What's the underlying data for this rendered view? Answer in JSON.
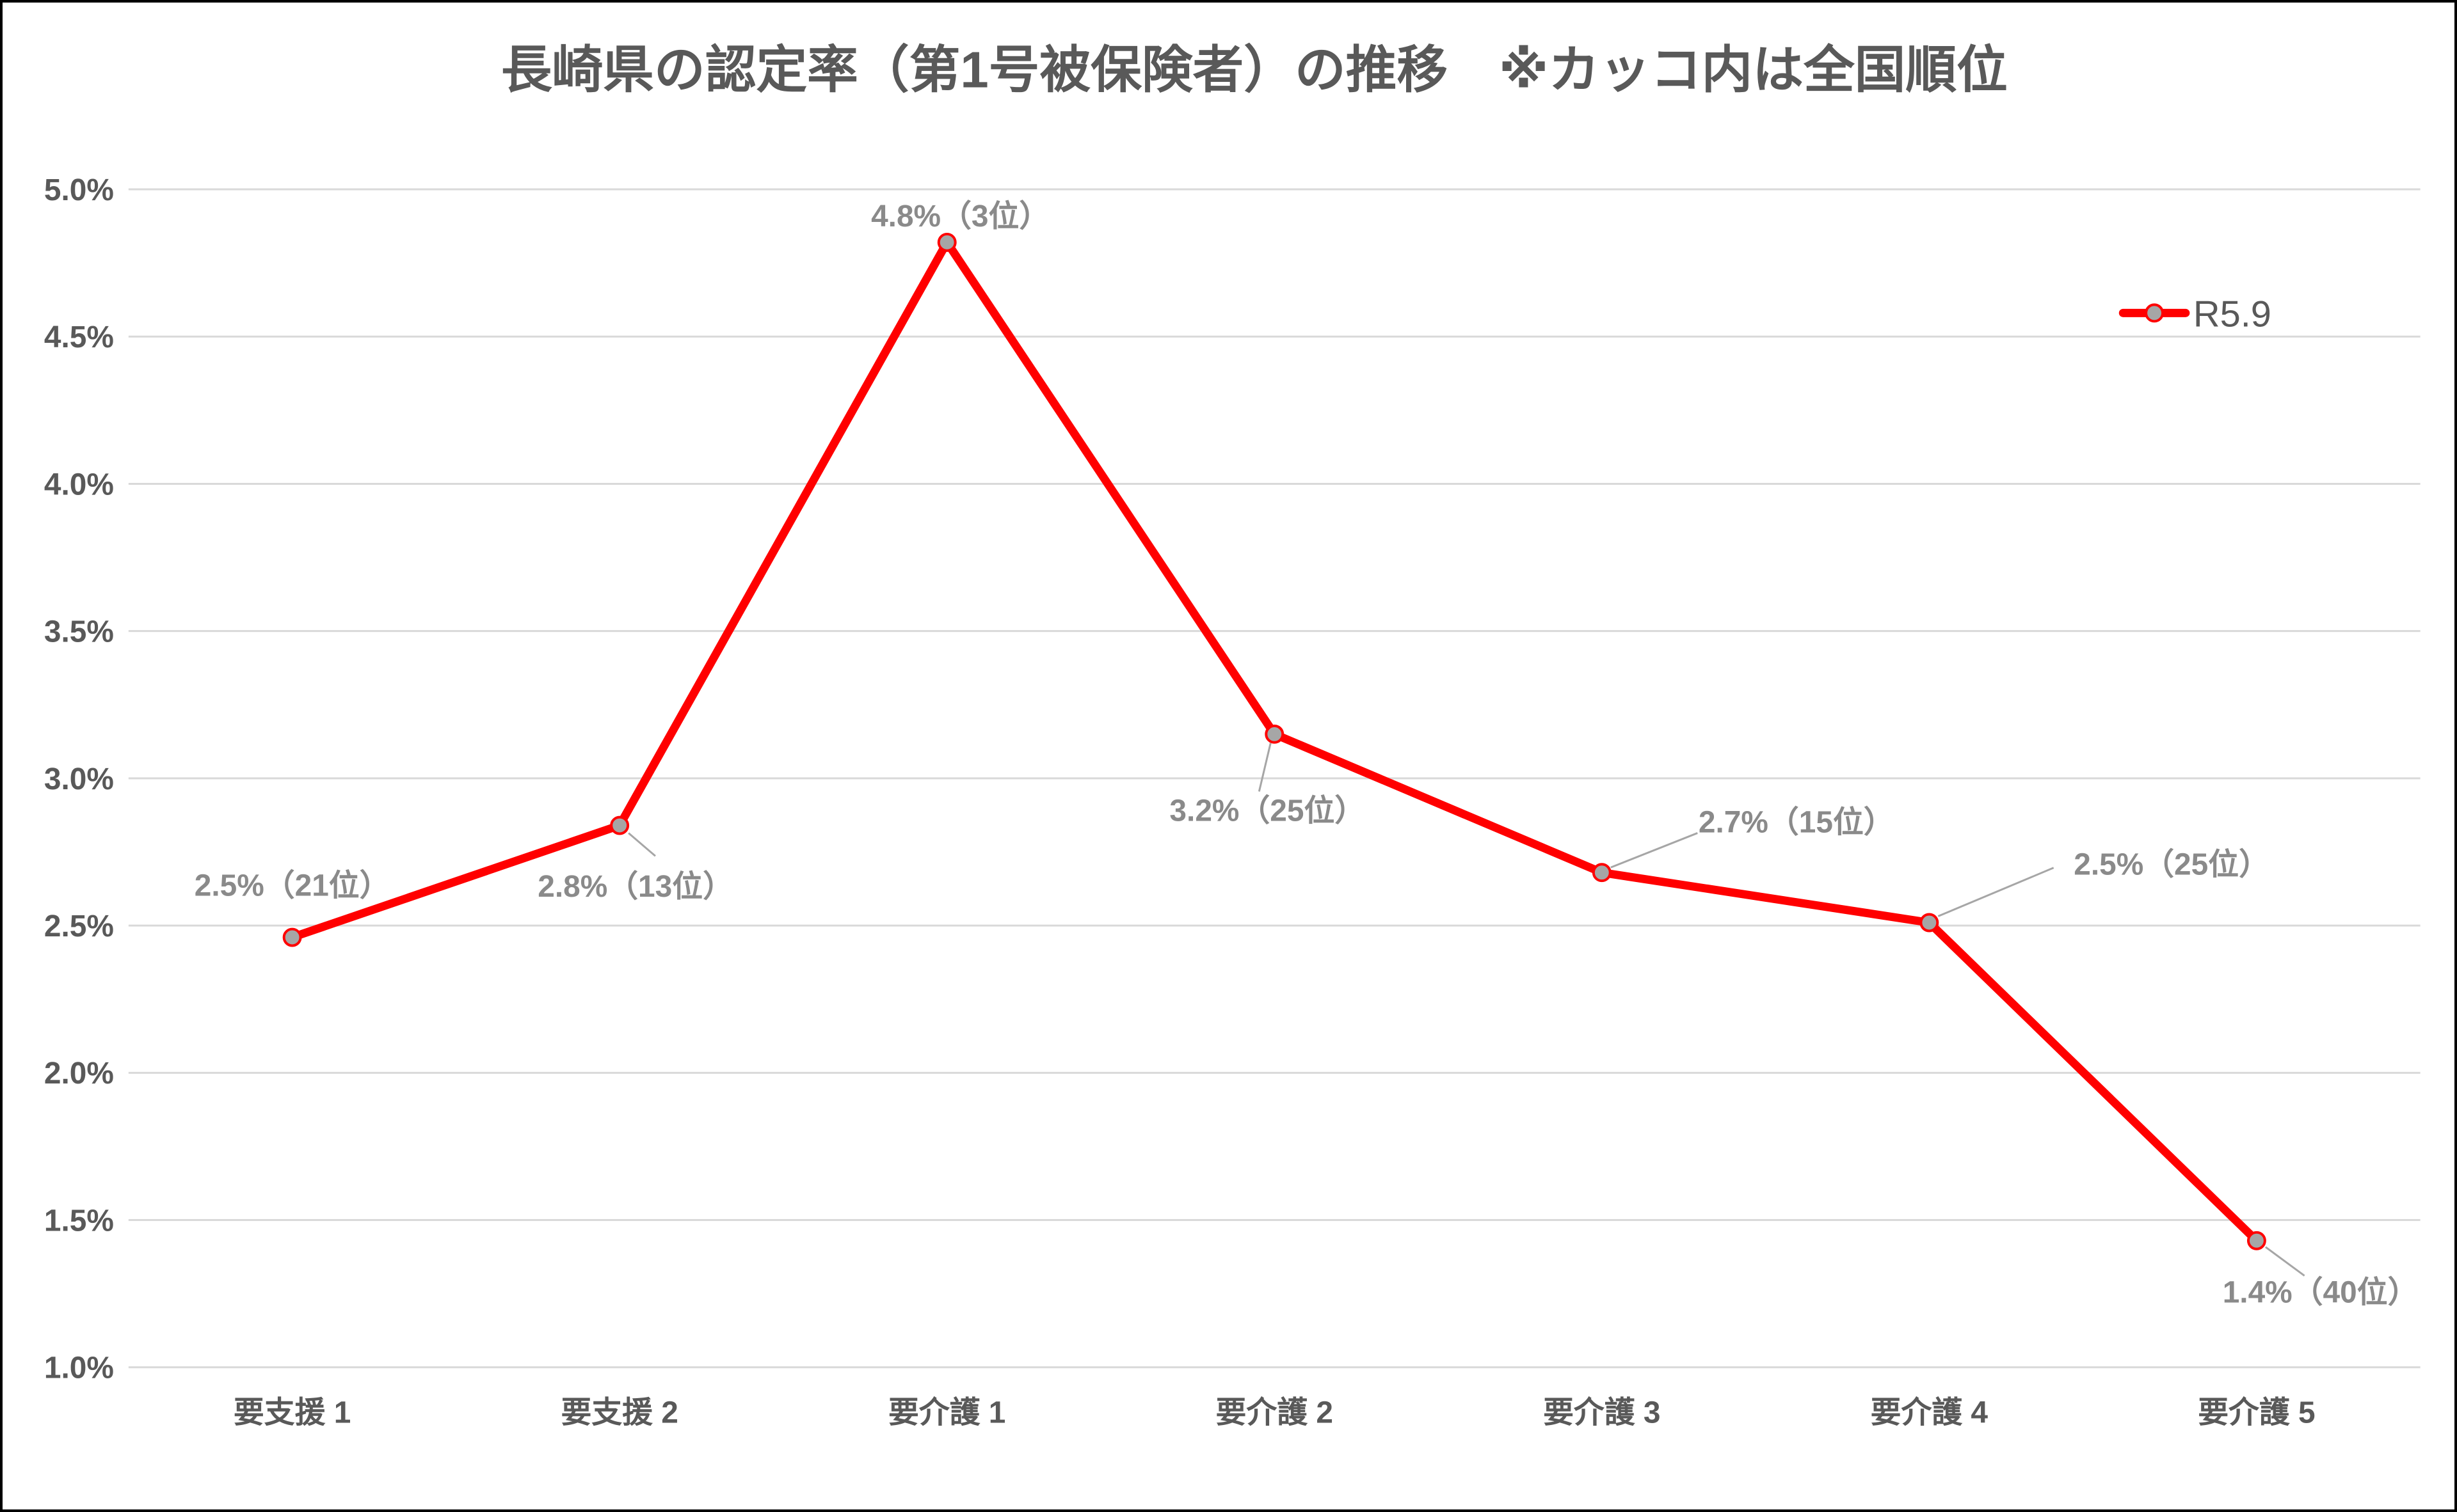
{
  "colors": {
    "line": "#ff0000",
    "marker_fill": "#a6a6a6",
    "grid": "#d9d9d9",
    "leader": "#a6a6a6",
    "title_text": "#595959",
    "axis_text": "#595959",
    "data_label_text": "#8a8a8a",
    "background": "#ffffff",
    "border": "#000000"
  },
  "chart_data": {
    "type": "line",
    "title": "長崎県の認定率（第1号被保険者）の推移　※カッコ内は全国順位",
    "categories": [
      "要支援 1",
      "要支援 2",
      "要介護 1",
      "要介護 2",
      "要介護 3",
      "要介護 4",
      "要介護 5"
    ],
    "series": [
      {
        "name": "R5.9",
        "values": [
          2.46,
          2.84,
          4.82,
          3.15,
          2.68,
          2.51,
          1.43
        ],
        "data_labels": [
          "2.5%（21位）",
          "2.8%（13位）",
          "4.8%（3位）",
          "3.2%（25位）",
          "2.7%（15位）",
          "2.5%（25位）",
          "1.4%（40位）"
        ]
      }
    ],
    "xlabel": "",
    "ylabel": "",
    "y_ticks": [
      "5.0%",
      "4.5%",
      "4.0%",
      "3.5%",
      "3.0%",
      "2.5%",
      "2.0%",
      "1.5%",
      "1.0%"
    ],
    "ylim": [
      1.0,
      5.0
    ],
    "y_tick_step": 0.5,
    "grid": true,
    "legend_position": "upper-right-inside"
  }
}
